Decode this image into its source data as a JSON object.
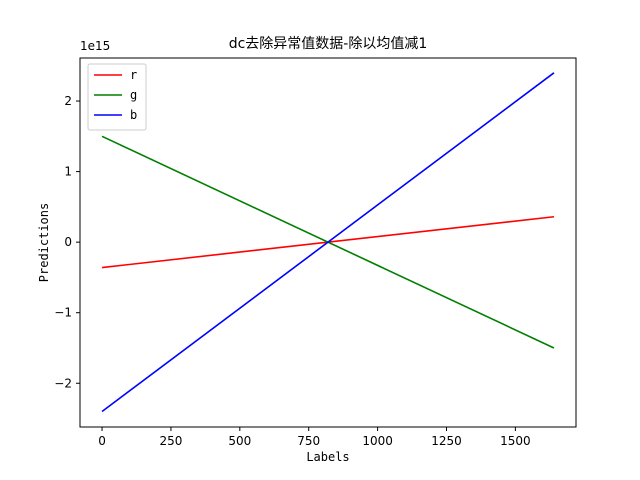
{
  "chart_data": {
    "type": "line",
    "title": "dc去除异常值数据-除以均值减1",
    "xlabel": "Labels",
    "ylabel": "Predictions",
    "offset_text": "1e15",
    "x_ticks": [
      0,
      250,
      500,
      750,
      1000,
      1250,
      1500
    ],
    "y_ticks": [
      -2,
      -1,
      0,
      1,
      2
    ],
    "y_tick_labels": [
      "−2",
      "−1",
      "0",
      "1",
      "2"
    ],
    "y_multiplier": 1000000000000000.0,
    "xlim": [
      -80,
      1720
    ],
    "ylim": [
      -2.62,
      2.61
    ],
    "legend_position": "top-left",
    "grid": false,
    "series": [
      {
        "name": "r",
        "color": "#ff0000",
        "x": [
          0,
          1640
        ],
        "y": [
          -0.36,
          0.36
        ]
      },
      {
        "name": "g",
        "color": "#008000",
        "x": [
          0,
          1640
        ],
        "y": [
          1.5,
          -1.5
        ]
      },
      {
        "name": "b",
        "color": "#0000ff",
        "x": [
          0,
          1640
        ],
        "y": [
          -2.4,
          2.4
        ]
      }
    ]
  }
}
